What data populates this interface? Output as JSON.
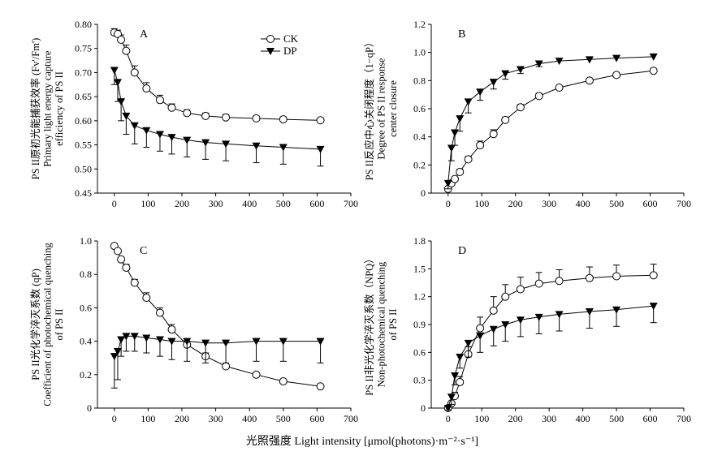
{
  "figure": {
    "xlabel": "光照强度 Light intensity [μmol(photons)·m⁻²·s⁻¹]",
    "legend": [
      {
        "name": "CK",
        "marker": "open-circle"
      },
      {
        "name": "DP",
        "marker": "filled-triangle-down"
      }
    ]
  },
  "chart_data": [
    {
      "type": "line",
      "panel": "A",
      "ylabel_lines": [
        "PS II原初光能捕获效率 (Fv'/Fm')",
        "Primary light energy capture",
        "efficiency of PS II"
      ],
      "xlim": [
        -50,
        700
      ],
      "ylim": [
        0.45,
        0.8
      ],
      "xticks": [
        0,
        100,
        200,
        300,
        400,
        500,
        600,
        700
      ],
      "yticks": [
        0.45,
        0.5,
        0.55,
        0.6,
        0.65,
        0.7,
        0.75,
        0.8
      ],
      "ytick_labels": [
        "0.45",
        "0.50",
        "0.55",
        "0.60",
        "0.65",
        "0.70",
        "0.75",
        "0.80"
      ],
      "x": [
        0,
        10,
        20,
        35,
        60,
        95,
        135,
        170,
        215,
        270,
        330,
        420,
        500,
        610
      ],
      "series": [
        {
          "name": "CK",
          "values": [
            0.783,
            0.78,
            0.768,
            0.745,
            0.7,
            0.667,
            0.643,
            0.627,
            0.616,
            0.61,
            0.607,
            0.605,
            0.603,
            0.601
          ],
          "errors": [
            0.008,
            0.008,
            0.01,
            0.012,
            0.014,
            0.012,
            0.01,
            0.008,
            0.007,
            0.006,
            0.006,
            0.005,
            0.005,
            0.005
          ]
        },
        {
          "name": "DP",
          "values": [
            0.705,
            0.68,
            0.64,
            0.61,
            0.59,
            0.58,
            0.572,
            0.566,
            0.56,
            0.555,
            0.552,
            0.548,
            0.545,
            0.541
          ],
          "errors": [
            0.03,
            0.04,
            0.04,
            0.038,
            0.038,
            0.035,
            0.035,
            0.035,
            0.035,
            0.035,
            0.035,
            0.035,
            0.035,
            0.035
          ]
        }
      ]
    },
    {
      "type": "line",
      "panel": "B",
      "ylabel_lines": [
        "PS II反应中心关闭程度（1−qP）",
        "Degree of PS II response",
        "center closure"
      ],
      "xlim": [
        -50,
        700
      ],
      "ylim": [
        0,
        1.2
      ],
      "xticks": [
        0,
        100,
        200,
        300,
        400,
        500,
        600,
        700
      ],
      "yticks": [
        0,
        0.2,
        0.4,
        0.6,
        0.8,
        1.0,
        1.2
      ],
      "ytick_labels": [
        "0",
        "0.2",
        "0.4",
        "0.6",
        "0.8",
        "1.0",
        "1.2"
      ],
      "x": [
        0,
        10,
        20,
        35,
        60,
        95,
        135,
        170,
        215,
        270,
        330,
        420,
        500,
        610
      ],
      "series": [
        {
          "name": "CK",
          "values": [
            0.03,
            0.07,
            0.1,
            0.15,
            0.24,
            0.34,
            0.42,
            0.52,
            0.61,
            0.69,
            0.75,
            0.8,
            0.84,
            0.87
          ],
          "errors": [
            0.01,
            0.01,
            0.01,
            0.02,
            0.02,
            0.03,
            0.03,
            0.02,
            0.02,
            0.02,
            0.01,
            0.01,
            0.01,
            0.01
          ]
        },
        {
          "name": "DP",
          "values": [
            0.07,
            0.32,
            0.43,
            0.53,
            0.65,
            0.72,
            0.79,
            0.85,
            0.88,
            0.92,
            0.94,
            0.95,
            0.96,
            0.97
          ],
          "errors": [
            0.04,
            0.09,
            0.09,
            0.09,
            0.08,
            0.06,
            0.05,
            0.04,
            0.03,
            0.02,
            0.01,
            0.01,
            0.01,
            0.01
          ]
        }
      ]
    },
    {
      "type": "line",
      "panel": "C",
      "ylabel_lines": [
        "PS II光化学淬灭系数 (qP)",
        "Coefficient of photochemical quenching",
        "of PS II"
      ],
      "xlim": [
        -50,
        700
      ],
      "ylim": [
        0,
        1.0
      ],
      "xticks": [
        0,
        100,
        200,
        300,
        400,
        500,
        600,
        700
      ],
      "yticks": [
        0,
        0.2,
        0.4,
        0.6,
        0.8,
        1.0
      ],
      "ytick_labels": [
        "0",
        "0.2",
        "0.4",
        "0.6",
        "0.8",
        "1.0"
      ],
      "x": [
        0,
        10,
        20,
        35,
        60,
        95,
        135,
        170,
        215,
        270,
        330,
        420,
        500,
        610
      ],
      "series": [
        {
          "name": "CK",
          "values": [
            0.97,
            0.94,
            0.89,
            0.84,
            0.75,
            0.66,
            0.57,
            0.47,
            0.38,
            0.31,
            0.25,
            0.2,
            0.16,
            0.13
          ],
          "errors": [
            0.01,
            0.01,
            0.01,
            0.02,
            0.02,
            0.03,
            0.03,
            0.03,
            0.02,
            0.02,
            0.01,
            0.01,
            0.01,
            0.01
          ]
        },
        {
          "name": "DP",
          "values": [
            0.31,
            0.34,
            0.41,
            0.43,
            0.43,
            0.42,
            0.41,
            0.4,
            0.4,
            0.39,
            0.39,
            0.4,
            0.4,
            0.4
          ],
          "errors": [
            0.19,
            0.17,
            0.1,
            0.09,
            0.09,
            0.09,
            0.1,
            0.11,
            0.12,
            0.12,
            0.12,
            0.12,
            0.12,
            0.13
          ]
        }
      ]
    },
    {
      "type": "line",
      "panel": "D",
      "ylabel_lines": [
        "PS II非光化学淬灭系数（NPQ）",
        "Non-photochemical quenching",
        "of PS II"
      ],
      "xlim": [
        -50,
        700
      ],
      "ylim": [
        0,
        1.8
      ],
      "xticks": [
        0,
        100,
        200,
        300,
        400,
        500,
        600,
        700
      ],
      "yticks": [
        0,
        0.3,
        0.6,
        0.9,
        1.2,
        1.5,
        1.8
      ],
      "ytick_labels": [
        "0",
        "0.3",
        "0.6",
        "0.9",
        "1.2",
        "1.5",
        "1.8"
      ],
      "x": [
        0,
        10,
        20,
        35,
        60,
        95,
        135,
        170,
        215,
        270,
        330,
        420,
        500,
        610
      ],
      "series": [
        {
          "name": "CK",
          "values": [
            0.0,
            0.05,
            0.13,
            0.28,
            0.58,
            0.86,
            1.05,
            1.2,
            1.28,
            1.34,
            1.37,
            1.4,
            1.42,
            1.43
          ],
          "errors": [
            0.01,
            0.02,
            0.04,
            0.06,
            0.08,
            0.12,
            0.15,
            0.13,
            0.13,
            0.12,
            0.12,
            0.12,
            0.12,
            0.12
          ]
        },
        {
          "name": "DP",
          "values": [
            0.0,
            0.12,
            0.35,
            0.55,
            0.7,
            0.78,
            0.85,
            0.9,
            0.95,
            0.98,
            1.01,
            1.04,
            1.06,
            1.1
          ],
          "errors": [
            0.02,
            0.08,
            0.1,
            0.12,
            0.15,
            0.18,
            0.18,
            0.18,
            0.18,
            0.18,
            0.18,
            0.18,
            0.18,
            0.18
          ]
        }
      ]
    }
  ]
}
